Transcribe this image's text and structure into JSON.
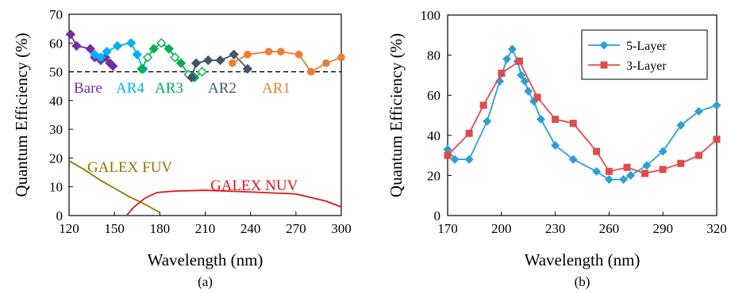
{
  "chart_data": [
    {
      "panel": "(a)",
      "type": "line",
      "xlabel": "Wavelength (nm)",
      "ylabel": "Quantum Efficiency (%)",
      "xlim": [
        120,
        300
      ],
      "ylim": [
        0,
        70
      ],
      "xticks": [
        120,
        150,
        180,
        210,
        240,
        270,
        300
      ],
      "yticks": [
        0,
        10,
        20,
        30,
        40,
        50,
        60,
        70
      ],
      "grid": false,
      "reference_line": {
        "y": 50,
        "style": "dashed",
        "color": "#000000"
      },
      "series": [
        {
          "name": "Bare",
          "color": "#7030A0",
          "marker": "diamond",
          "filled": true,
          "x": [
            121,
            125,
            134,
            137,
            141,
            144,
            147,
            149
          ],
          "y": [
            63,
            59,
            58,
            55,
            54,
            55,
            53,
            52
          ]
        },
        {
          "name": "AR4",
          "color": "#00B0F0",
          "marker": "diamond",
          "filled": true,
          "x": [
            137,
            141,
            145,
            152,
            161,
            165,
            169
          ],
          "y": [
            56,
            55,
            57,
            59,
            60,
            56,
            51
          ]
        },
        {
          "name": "AR3",
          "color": "#00B050",
          "marker": "diamond",
          "filled": "mixed",
          "x": [
            168,
            172,
            176,
            181,
            186,
            190,
            194,
            199,
            203,
            208
          ],
          "y": [
            51,
            55,
            58,
            60,
            58,
            55,
            53,
            49,
            48,
            50
          ]
        },
        {
          "name": "AR2",
          "color": "#44546A",
          "marker": "diamond",
          "filled": true,
          "x": [
            201,
            204,
            212,
            220,
            229,
            238
          ],
          "y": [
            48,
            53,
            54,
            54,
            56,
            51
          ]
        },
        {
          "name": "AR1",
          "color": "#ED7D31",
          "marker": "circle",
          "filled": true,
          "x": [
            228,
            238,
            252,
            260,
            272,
            280,
            290,
            300
          ],
          "y": [
            53,
            56,
            57,
            57,
            56,
            50,
            53,
            55
          ]
        },
        {
          "name": "GALEX FUV",
          "color": "#997300",
          "marker": "none",
          "x": [
            120,
            130,
            140,
            150,
            160,
            170,
            180
          ],
          "y": [
            19,
            16,
            12.5,
            9.5,
            6.5,
            4,
            1
          ]
        },
        {
          "name": "GALEX NUV",
          "color": "#E2141C",
          "marker": "none",
          "x": [
            158,
            163,
            170,
            178,
            190,
            210,
            240,
            270,
            290,
            300
          ],
          "y": [
            0,
            3,
            6,
            8,
            8.5,
            8.8,
            8.2,
            7.5,
            5,
            3
          ]
        }
      ],
      "annotations": [
        {
          "text": "Bare",
          "color": "#7030A0"
        },
        {
          "text": "AR4",
          "color": "#00B0F0"
        },
        {
          "text": "AR3",
          "color": "#00B050"
        },
        {
          "text": "AR2",
          "color": "#44546A"
        },
        {
          "text": "AR1",
          "color": "#ED7D31"
        },
        {
          "text": "GALEX FUV",
          "color": "#997300"
        },
        {
          "text": "GALEX NUV",
          "color": "#E2141C"
        }
      ]
    },
    {
      "panel": "(b)",
      "type": "line",
      "xlabel": "Wavelength (nm)",
      "ylabel": "Quantum Efficiency (%)",
      "xlim": [
        170,
        320
      ],
      "ylim": [
        0,
        100
      ],
      "xticks": [
        170,
        200,
        230,
        260,
        290,
        320
      ],
      "yticks": [
        0,
        20,
        40,
        60,
        80,
        100
      ],
      "grid": false,
      "legend": {
        "position": "top-right"
      },
      "series": [
        {
          "name": "5-Layer",
          "color": "#2E9ED6",
          "marker": "diamond",
          "x": [
            170,
            174,
            182,
            192,
            199,
            203,
            206,
            209,
            211,
            213,
            215,
            218,
            222,
            230,
            240,
            253,
            260,
            268,
            272,
            281,
            290,
            300,
            310,
            320
          ],
          "y": [
            33,
            28,
            28,
            47,
            67,
            78,
            83,
            77,
            70,
            67,
            62,
            57,
            48,
            35,
            28,
            22,
            18,
            18,
            20,
            25,
            32,
            45,
            52,
            55
          ]
        },
        {
          "name": "3-Layer",
          "color": "#E04B4B",
          "marker": "square",
          "x": [
            170,
            182,
            190,
            200,
            210,
            220,
            230,
            240,
            253,
            260,
            270,
            280,
            290,
            300,
            310,
            320
          ],
          "y": [
            30,
            41,
            55,
            71,
            77,
            59,
            48,
            46,
            32,
            22,
            24,
            21,
            23,
            26,
            30,
            38
          ]
        }
      ]
    }
  ]
}
